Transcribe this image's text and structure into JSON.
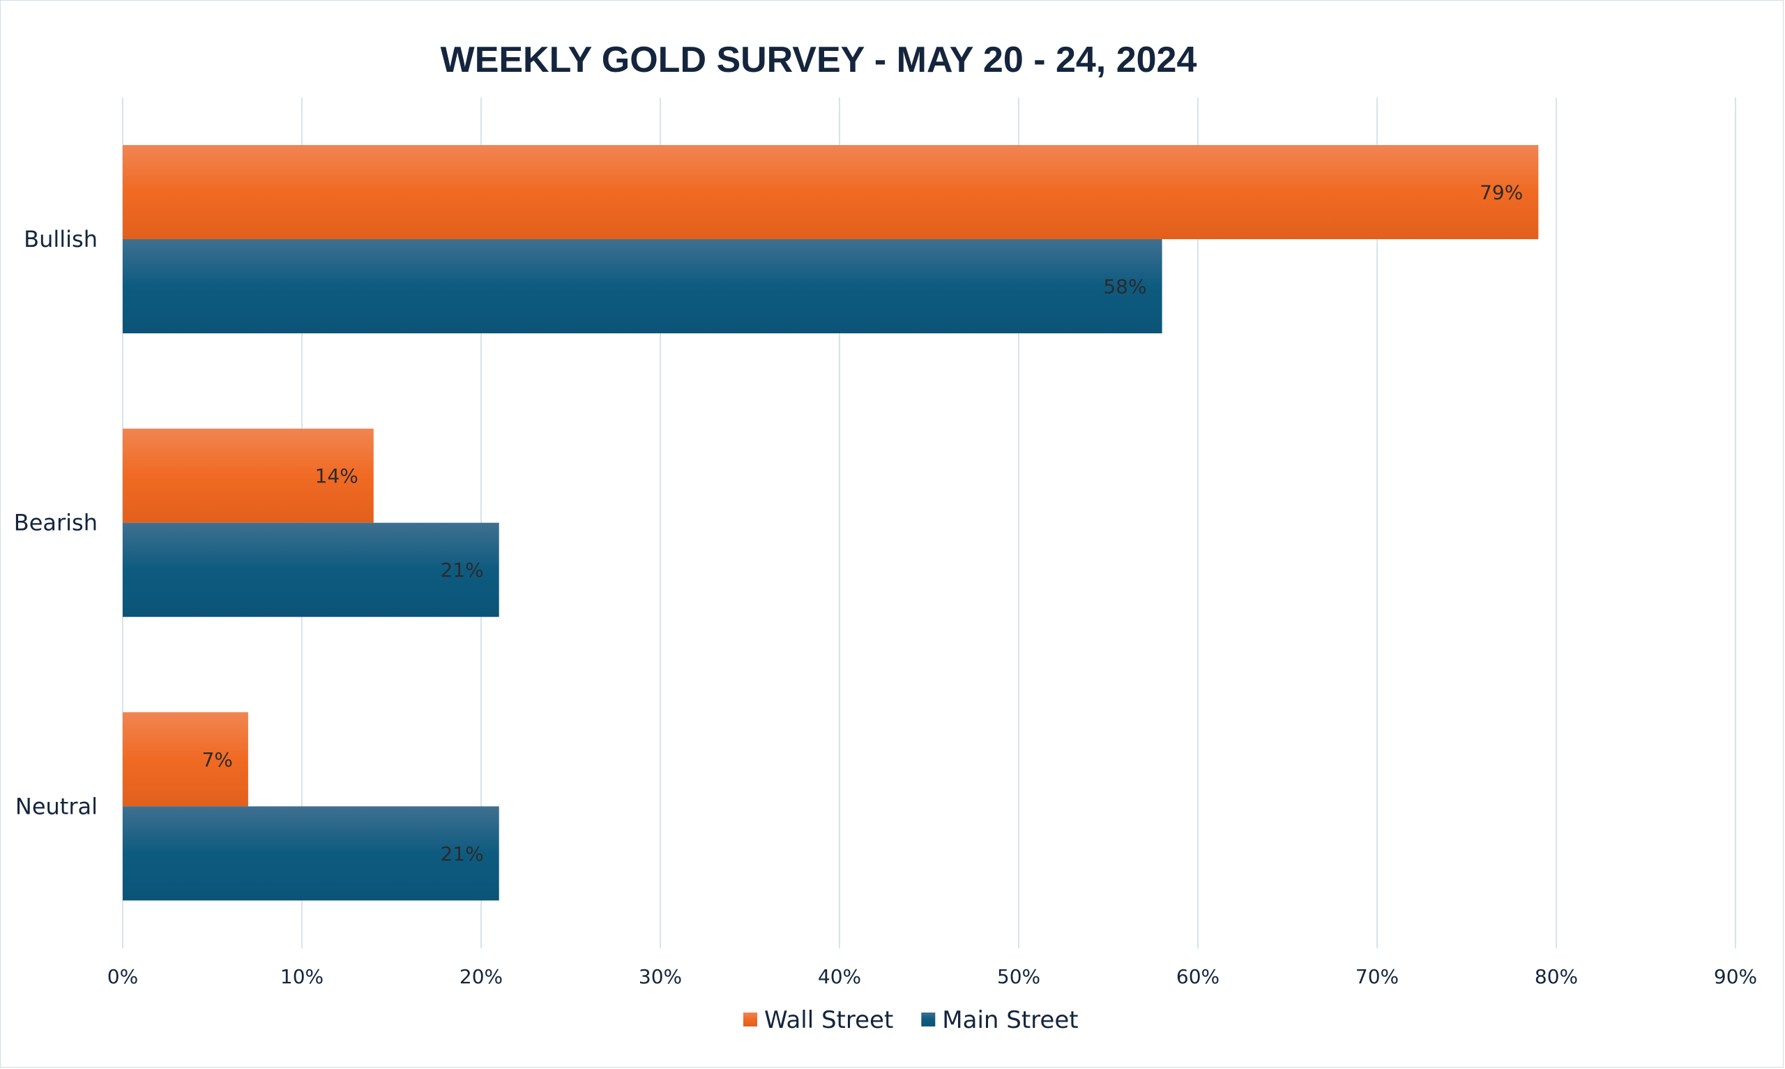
{
  "chart_data": {
    "type": "bar",
    "orientation": "horizontal",
    "title": "WEEKLY GOLD SURVEY - MAY 20 - 24, 2024",
    "categories": [
      "Bullish",
      "Bearish",
      "Neutral"
    ],
    "series": [
      {
        "name": "Wall Street",
        "values": [
          79,
          14,
          7
        ],
        "labels": [
          "79%",
          "14%",
          "7%"
        ],
        "color": "#ee6a24"
      },
      {
        "name": "Main Street",
        "values": [
          58,
          21,
          21
        ],
        "labels": [
          "58%",
          "21%",
          "21%"
        ],
        "color": "#0f5a7e"
      }
    ],
    "xlim": [
      0,
      90
    ],
    "x_ticks": [
      {
        "value": 0,
        "label": "0%"
      },
      {
        "value": 10,
        "label": "10%"
      },
      {
        "value": 20,
        "label": "20%"
      },
      {
        "value": 30,
        "label": "30%"
      },
      {
        "value": 40,
        "label": "40%"
      },
      {
        "value": 50,
        "label": "50%"
      },
      {
        "value": 60,
        "label": "60%"
      },
      {
        "value": 70,
        "label": "70%"
      },
      {
        "value": 80,
        "label": "80%"
      },
      {
        "value": 90,
        "label": "90%"
      }
    ],
    "grid": true,
    "legend_position": "bottom"
  }
}
